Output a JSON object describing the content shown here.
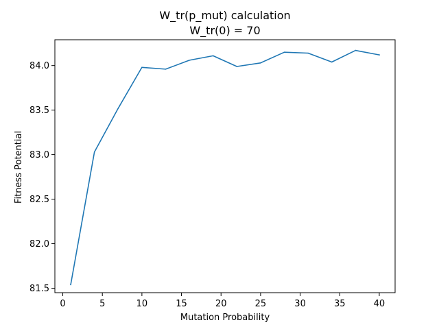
{
  "chart_data": {
    "type": "line",
    "title_line1": "W_tr(p_mut) calculation",
    "title_line2": "W_tr(0) = 70",
    "xlabel": "Mutation Probability",
    "ylabel": "Fitness Potential",
    "xlim": [
      -1.0,
      42.0
    ],
    "ylim": [
      81.45,
      84.29
    ],
    "xticks": [
      0,
      5,
      10,
      15,
      20,
      25,
      30,
      35,
      40
    ],
    "xtick_labels": [
      "0",
      "5",
      "10",
      "15",
      "20",
      "25",
      "30",
      "35",
      "40"
    ],
    "yticks": [
      81.5,
      82.0,
      82.5,
      83.0,
      83.5,
      84.0
    ],
    "ytick_labels": [
      "81.5",
      "82.0",
      "82.5",
      "83.0",
      "83.5",
      "84.0"
    ],
    "grid": false,
    "series": [
      {
        "color": "#1f77b4",
        "x": [
          1,
          4,
          7,
          10,
          13,
          16,
          19,
          22,
          25,
          28,
          31,
          34,
          37,
          40
        ],
        "y": [
          81.54,
          83.03,
          83.52,
          83.98,
          83.96,
          84.06,
          84.11,
          83.99,
          84.03,
          84.15,
          84.14,
          84.04,
          84.17,
          84.12
        ]
      }
    ]
  }
}
